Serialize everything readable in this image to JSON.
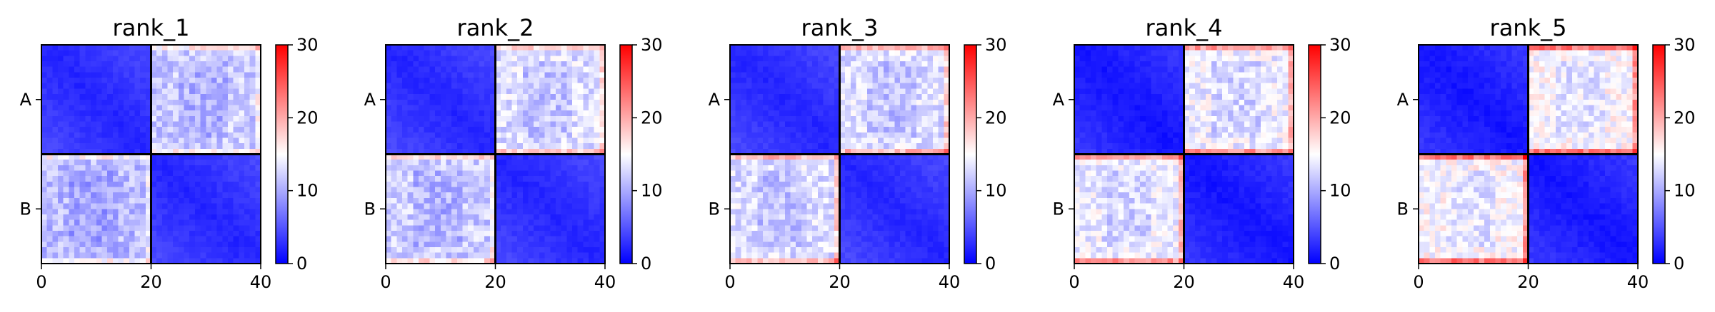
{
  "chart_data": [
    {
      "type": "heatmap",
      "title": "rank_1",
      "xticks": [
        0,
        20,
        40
      ],
      "yticks": [
        "A",
        "B"
      ],
      "colorbar": {
        "min": 0,
        "max": 30,
        "ticks": [
          0,
          10,
          20,
          30
        ],
        "colors": [
          "#0000ff",
          "#ffffff",
          "#ff0000"
        ]
      },
      "blocks": {
        "A-A": 3,
        "A-B": 12,
        "B-A": 11,
        "B-B": 3
      },
      "grid_size": 40,
      "block_boundary": 20
    },
    {
      "type": "heatmap",
      "title": "rank_2",
      "xticks": [
        0,
        20,
        40
      ],
      "yticks": [
        "A",
        "B"
      ],
      "colorbar": {
        "min": 0,
        "max": 30,
        "ticks": [
          0,
          10,
          20,
          30
        ],
        "colors": [
          "#0000ff",
          "#ffffff",
          "#ff0000"
        ]
      },
      "blocks": {
        "A-A": 3,
        "A-B": 13,
        "B-A": 12,
        "B-B": 3
      },
      "grid_size": 40,
      "block_boundary": 20
    },
    {
      "type": "heatmap",
      "title": "rank_3",
      "xticks": [
        0,
        20,
        40
      ],
      "yticks": [
        "A",
        "B"
      ],
      "colorbar": {
        "min": 0,
        "max": 30,
        "ticks": [
          0,
          10,
          20,
          30
        ],
        "colors": [
          "#0000ff",
          "#ffffff",
          "#ff0000"
        ]
      },
      "blocks": {
        "A-A": 3,
        "A-B": 13,
        "B-A": 13,
        "B-B": 3
      },
      "grid_size": 40,
      "block_boundary": 20
    },
    {
      "type": "heatmap",
      "title": "rank_4",
      "xticks": [
        0,
        20,
        40
      ],
      "yticks": [
        "A",
        "B"
      ],
      "colorbar": {
        "min": 0,
        "max": 30,
        "ticks": [
          0,
          10,
          20,
          30
        ],
        "colors": [
          "#0000ff",
          "#ffffff",
          "#ff0000"
        ]
      },
      "blocks": {
        "A-A": 2,
        "A-B": 14,
        "B-A": 14,
        "B-B": 2
      },
      "grid_size": 40,
      "block_boundary": 20
    },
    {
      "type": "heatmap",
      "title": "rank_5",
      "xticks": [
        0,
        20,
        40
      ],
      "yticks": [
        "A",
        "B"
      ],
      "colorbar": {
        "min": 0,
        "max": 30,
        "ticks": [
          0,
          10,
          20,
          30
        ],
        "colors": [
          "#0000ff",
          "#ffffff",
          "#ff0000"
        ]
      },
      "blocks": {
        "A-A": 2,
        "A-B": 15,
        "B-A": 15,
        "B-B": 2
      },
      "grid_size": 40,
      "block_boundary": 20
    }
  ]
}
